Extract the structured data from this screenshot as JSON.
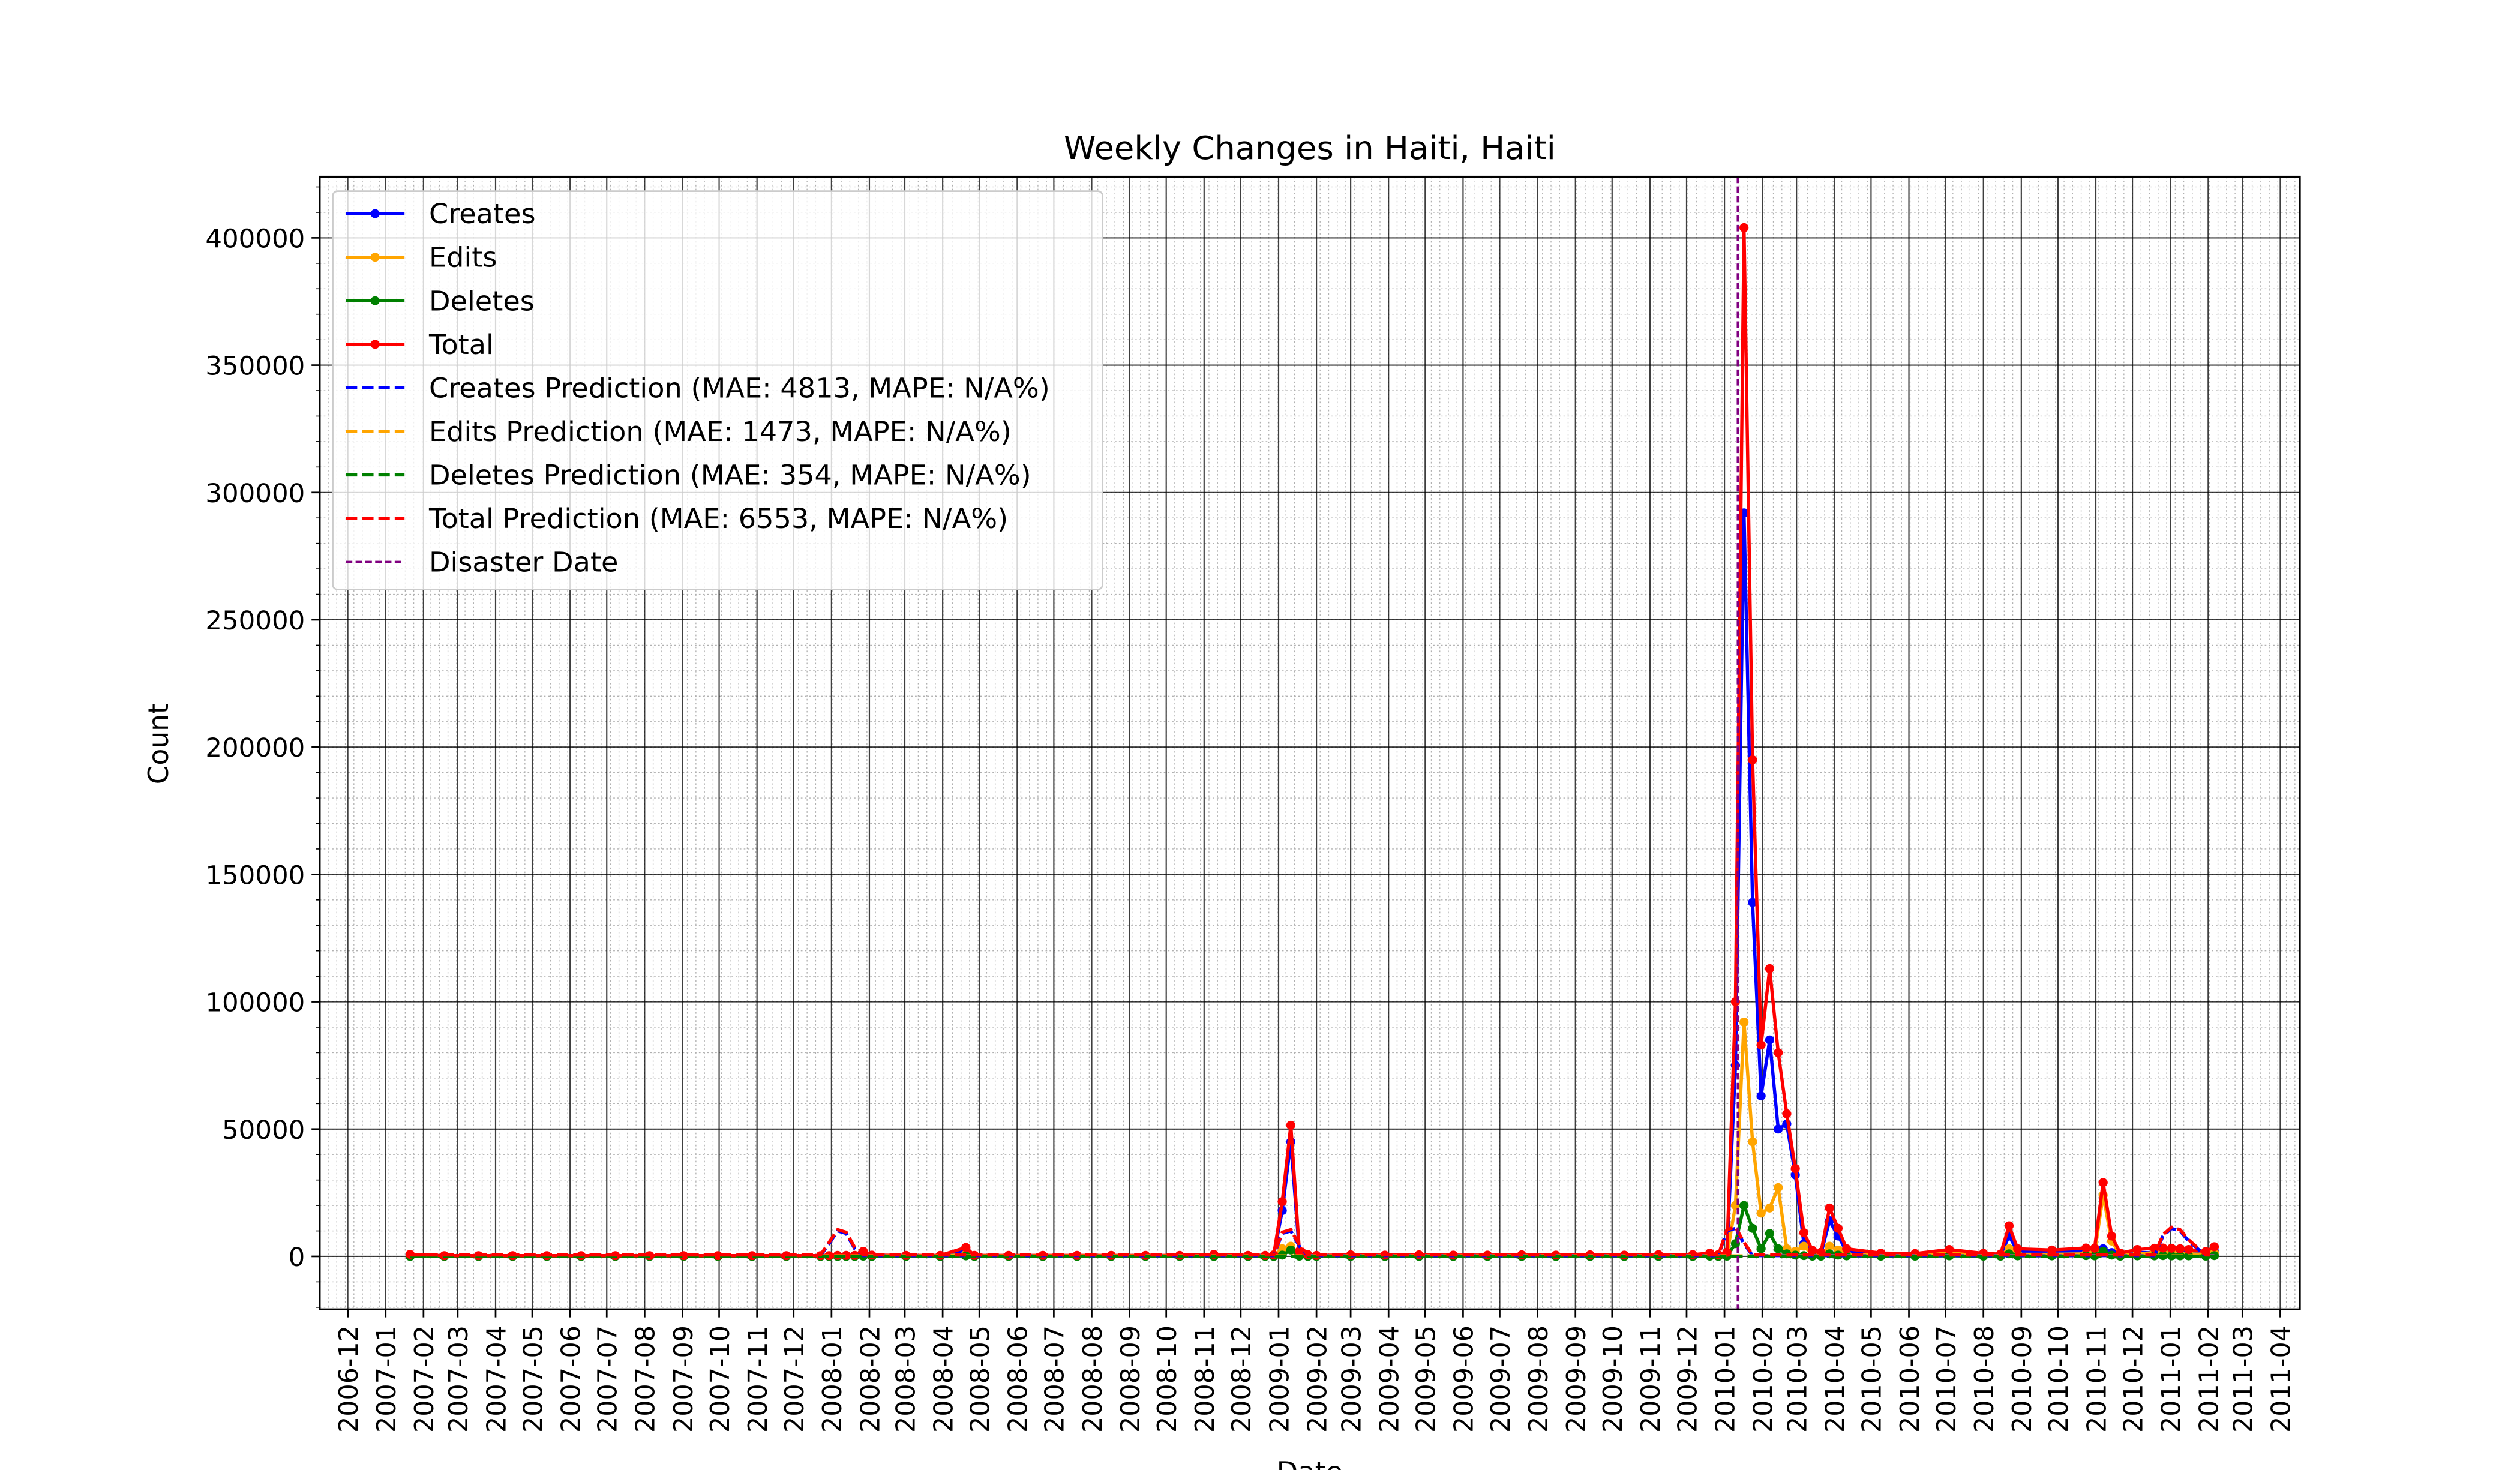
{
  "chart_data": {
    "type": "line",
    "title": "Weekly Changes in Haiti, Haiti",
    "x_label": "Date",
    "y_label": "Count",
    "x": [
      "2007-01-21",
      "2007-02-18",
      "2007-03-18",
      "2007-04-15",
      "2007-05-13",
      "2007-06-10",
      "2007-07-08",
      "2007-08-05",
      "2007-09-02",
      "2007-09-30",
      "2007-10-28",
      "2007-11-25",
      "2007-12-23",
      "2007-12-30",
      "2008-01-06",
      "2008-01-13",
      "2008-01-20",
      "2008-01-27",
      "2008-02-03",
      "2008-03-02",
      "2008-03-30",
      "2008-04-20",
      "2008-04-27",
      "2008-05-25",
      "2008-06-22",
      "2008-07-20",
      "2008-08-17",
      "2008-09-14",
      "2008-10-12",
      "2008-11-09",
      "2008-12-07",
      "2008-12-21",
      "2008-12-28",
      "2009-01-04",
      "2009-01-11",
      "2009-01-18",
      "2009-01-25",
      "2009-02-01",
      "2009-03-01",
      "2009-03-29",
      "2009-04-26",
      "2009-05-24",
      "2009-06-21",
      "2009-07-19",
      "2009-08-16",
      "2009-09-13",
      "2009-10-11",
      "2009-11-08",
      "2009-12-06",
      "2009-12-20",
      "2009-12-27",
      "2010-01-03",
      "2010-01-10",
      "2010-01-17",
      "2010-01-24",
      "2010-01-31",
      "2010-02-07",
      "2010-02-14",
      "2010-02-21",
      "2010-02-28",
      "2010-03-07",
      "2010-03-14",
      "2010-03-21",
      "2010-03-28",
      "2010-04-04",
      "2010-04-11",
      "2010-05-09",
      "2010-06-06",
      "2010-07-04",
      "2010-08-01",
      "2010-08-15",
      "2010-08-22",
      "2010-08-29",
      "2010-09-26",
      "2010-10-24",
      "2010-10-31",
      "2010-11-07",
      "2010-11-14",
      "2010-11-21",
      "2010-12-05",
      "2010-12-19",
      "2010-12-26",
      "2011-01-02",
      "2011-01-09",
      "2011-01-16",
      "2011-01-30",
      "2011-02-06"
    ],
    "series": [
      {
        "name": "Creates",
        "color": "#0000ff",
        "dashed": false,
        "marker": true,
        "values": [
          500,
          200,
          200,
          200,
          200,
          200,
          200,
          200,
          200,
          200,
          200,
          200,
          200,
          200,
          300,
          300,
          300,
          1500,
          400,
          300,
          300,
          2500,
          300,
          300,
          300,
          300,
          300,
          300,
          300,
          600,
          300,
          300,
          500,
          18000,
          45000,
          1500,
          500,
          300,
          400,
          300,
          400,
          300,
          300,
          400,
          300,
          400,
          300,
          500,
          500,
          800,
          500,
          1000,
          75000,
          292000,
          139000,
          63000,
          85000,
          50000,
          52000,
          32000,
          5000,
          1500,
          1000,
          14000,
          8000,
          2000,
          800,
          600,
          1000,
          700,
          500,
          8000,
          2000,
          1500,
          2000,
          1500,
          3000,
          1500,
          700,
          1500,
          1500,
          2000,
          1500,
          2000,
          1500,
          1000,
          2000
        ]
      },
      {
        "name": "Edits",
        "color": "#ffa500",
        "dashed": false,
        "marker": true,
        "values": [
          300,
          100,
          100,
          100,
          100,
          100,
          100,
          100,
          100,
          100,
          100,
          100,
          100,
          100,
          100,
          100,
          100,
          400,
          100,
          100,
          100,
          800,
          100,
          100,
          100,
          100,
          100,
          100,
          100,
          200,
          100,
          100,
          100,
          3000,
          4000,
          500,
          200,
          100,
          200,
          200,
          200,
          200,
          200,
          200,
          200,
          200,
          200,
          200,
          200,
          400,
          200,
          500,
          20000,
          92000,
          45000,
          17000,
          19000,
          27000,
          3000,
          2000,
          4000,
          800,
          500,
          4000,
          2500,
          800,
          400,
          400,
          1500,
          400,
          300,
          3000,
          800,
          800,
          1000,
          1500,
          24000,
          6000,
          500,
          1000,
          1500,
          1000,
          1500,
          800,
          1000,
          800,
          1500
        ]
      },
      {
        "name": "Deletes",
        "color": "#008000",
        "dashed": false,
        "marker": true,
        "values": [
          0,
          0,
          0,
          0,
          0,
          0,
          0,
          0,
          0,
          0,
          0,
          0,
          0,
          0,
          0,
          0,
          0,
          100,
          0,
          0,
          0,
          200,
          0,
          0,
          0,
          0,
          0,
          0,
          0,
          0,
          0,
          0,
          0,
          500,
          2500,
          100,
          0,
          0,
          0,
          0,
          0,
          0,
          0,
          0,
          0,
          0,
          0,
          0,
          0,
          100,
          0,
          100,
          5000,
          20000,
          11000,
          3000,
          9000,
          3000,
          1000,
          500,
          300,
          100,
          100,
          1000,
          500,
          200,
          100,
          100,
          200,
          100,
          100,
          1000,
          200,
          200,
          300,
          200,
          2000,
          500,
          100,
          200,
          200,
          300,
          200,
          200,
          200,
          100,
          300
        ]
      },
      {
        "name": "Total",
        "color": "#ff0000",
        "dashed": false,
        "marker": true,
        "values": [
          800,
          300,
          300,
          300,
          300,
          300,
          300,
          300,
          300,
          300,
          300,
          300,
          300,
          300,
          400,
          400,
          400,
          2000,
          500,
          400,
          400,
          3500,
          400,
          400,
          400,
          400,
          400,
          400,
          400,
          800,
          400,
          400,
          600,
          21500,
          51500,
          2100,
          700,
          400,
          600,
          500,
          600,
          500,
          500,
          600,
          500,
          600,
          500,
          700,
          700,
          1300,
          700,
          1600,
          100000,
          404000,
          195000,
          83000,
          113000,
          80000,
          56000,
          34500,
          9300,
          2400,
          1600,
          19000,
          11000,
          3000,
          1300,
          1100,
          2700,
          1200,
          900,
          12000,
          3000,
          2500,
          3300,
          3200,
          29000,
          8000,
          1300,
          2700,
          3200,
          3300,
          3200,
          3000,
          2700,
          1900,
          3800
        ]
      },
      {
        "name": "Creates Prediction (MAE: 4813, MAPE: N/A%)",
        "color": "#0000ff",
        "dashed": true,
        "marker": false,
        "values": [
          300,
          300,
          300,
          300,
          300,
          300,
          300,
          300,
          300,
          300,
          300,
          300,
          300,
          5000,
          10000,
          9000,
          3000,
          300,
          300,
          300,
          300,
          300,
          300,
          300,
          300,
          300,
          300,
          300,
          300,
          300,
          300,
          300,
          300,
          9000,
          10000,
          4000,
          300,
          300,
          300,
          300,
          300,
          300,
          300,
          300,
          300,
          300,
          300,
          300,
          300,
          300,
          300,
          10000,
          11000,
          5000,
          300,
          300,
          300,
          300,
          300,
          300,
          300,
          300,
          300,
          300,
          300,
          300,
          300,
          300,
          300,
          300,
          300,
          300,
          300,
          300,
          300,
          300,
          300,
          300,
          300,
          300,
          300,
          8000,
          11000,
          10000,
          6000,
          300,
          300
        ]
      },
      {
        "name": "Edits Prediction (MAE: 1473, MAPE: N/A%)",
        "color": "#ffa500",
        "dashed": true,
        "marker": false,
        "values": [
          200,
          200,
          200,
          200,
          200,
          200,
          200,
          200,
          200,
          200,
          200,
          200,
          200,
          200,
          200,
          200,
          200,
          200,
          200,
          200,
          200,
          200,
          200,
          200,
          200,
          200,
          200,
          200,
          200,
          200,
          200,
          200,
          200,
          200,
          200,
          200,
          200,
          200,
          200,
          200,
          200,
          200,
          200,
          200,
          200,
          200,
          200,
          200,
          200,
          200,
          200,
          200,
          200,
          200,
          200,
          200,
          200,
          200,
          200,
          200,
          200,
          200,
          200,
          200,
          200,
          200,
          200,
          200,
          200,
          200,
          200,
          200,
          200,
          200,
          200,
          200,
          200,
          200,
          200,
          200,
          200,
          200,
          200,
          200,
          200,
          200,
          200
        ]
      },
      {
        "name": "Deletes Prediction (MAE: 354, MAPE: N/A%)",
        "color": "#008000",
        "dashed": true,
        "marker": false,
        "values": [
          50,
          50,
          50,
          50,
          50,
          50,
          50,
          50,
          50,
          50,
          50,
          50,
          50,
          50,
          50,
          50,
          50,
          50,
          50,
          50,
          50,
          50,
          50,
          50,
          50,
          50,
          50,
          50,
          50,
          50,
          50,
          50,
          50,
          50,
          50,
          50,
          50,
          50,
          50,
          50,
          50,
          50,
          50,
          50,
          50,
          50,
          50,
          50,
          50,
          50,
          50,
          50,
          50,
          50,
          50,
          50,
          50,
          50,
          50,
          50,
          50,
          50,
          50,
          50,
          50,
          50,
          50,
          50,
          50,
          50,
          50,
          50,
          50,
          50,
          50,
          50,
          50,
          50,
          50,
          50,
          50,
          50,
          50,
          50,
          50,
          50,
          50
        ]
      },
      {
        "name": "Total Prediction (MAE: 6553, MAPE: N/A%)",
        "color": "#ff0000",
        "dashed": true,
        "marker": false,
        "values": [
          550,
          550,
          550,
          550,
          550,
          550,
          550,
          550,
          550,
          550,
          550,
          550,
          550,
          5500,
          10500,
          9500,
          3500,
          550,
          550,
          550,
          550,
          550,
          550,
          550,
          550,
          550,
          550,
          550,
          550,
          550,
          550,
          550,
          550,
          9500,
          10500,
          4500,
          550,
          550,
          550,
          550,
          550,
          550,
          550,
          550,
          550,
          550,
          550,
          550,
          550,
          550,
          550,
          10500,
          11500,
          5500,
          550,
          550,
          550,
          550,
          550,
          550,
          550,
          550,
          550,
          550,
          550,
          550,
          550,
          550,
          550,
          550,
          550,
          550,
          550,
          550,
          550,
          550,
          550,
          550,
          550,
          550,
          550,
          8500,
          11500,
          10500,
          6500,
          550,
          550
        ]
      }
    ],
    "disaster": {
      "name": "Disaster Date",
      "x": "2010-01-12",
      "color": "#800080"
    },
    "xlim": [
      "2006-11-08",
      "2011-04-17"
    ],
    "xticks": [
      "2006-12",
      "2007-01",
      "2007-02",
      "2007-03",
      "2007-04",
      "2007-05",
      "2007-06",
      "2007-07",
      "2007-08",
      "2007-09",
      "2007-10",
      "2007-11",
      "2007-12",
      "2008-01",
      "2008-02",
      "2008-03",
      "2008-04",
      "2008-05",
      "2008-06",
      "2008-07",
      "2008-08",
      "2008-09",
      "2008-10",
      "2008-11",
      "2008-12",
      "2009-01",
      "2009-02",
      "2009-03",
      "2009-04",
      "2009-05",
      "2009-06",
      "2009-07",
      "2009-08",
      "2009-09",
      "2009-10",
      "2009-11",
      "2009-12",
      "2010-01",
      "2010-02",
      "2010-03",
      "2010-04",
      "2010-05",
      "2010-06",
      "2010-07",
      "2010-08",
      "2010-09",
      "2010-10",
      "2010-11",
      "2010-12",
      "2011-01",
      "2011-02",
      "2011-03",
      "2011-04"
    ],
    "ylim": [
      -20800,
      424000
    ],
    "yticks": [
      0,
      50000,
      100000,
      150000,
      200000,
      250000,
      300000,
      350000,
      400000
    ],
    "grid": true,
    "minor_grid": true,
    "legend": "upper left"
  }
}
